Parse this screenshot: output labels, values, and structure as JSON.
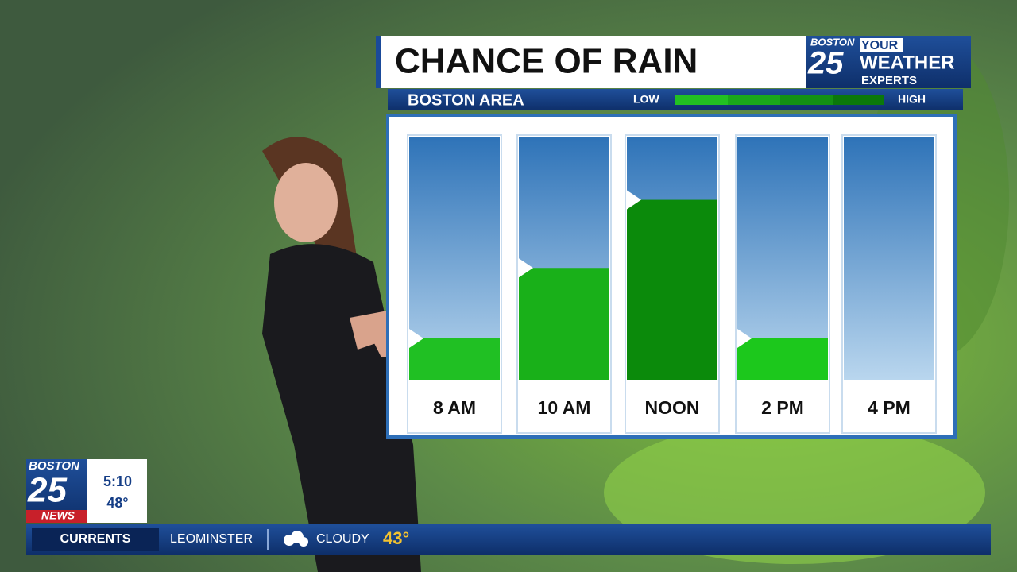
{
  "chart_data": {
    "type": "bar",
    "title": "CHANCE OF RAIN",
    "subtitle": "BOSTON AREA",
    "legend": {
      "low": "LOW",
      "high": "HIGH"
    },
    "categories": [
      "8 AM",
      "10 AM",
      "NOON",
      "2 PM",
      "4 PM"
    ],
    "values": [
      17,
      46,
      74,
      17,
      0
    ],
    "colors": [
      "#20c023",
      "#19b019",
      "#0b8a0b",
      "#1cc81c",
      "#1cc81c"
    ],
    "ylim": [
      0,
      100
    ]
  },
  "logo": {
    "city": "BOSTON",
    "number": "25",
    "line1": "YOUR",
    "line2": "WEATHER",
    "line3": "EXPERTS"
  },
  "bug": {
    "city": "BOSTON",
    "number": "25",
    "brand": "NEWS",
    "time": "5:10",
    "temperature": "48°"
  },
  "ticker": {
    "label": "CURRENTS",
    "location": "LEOMINSTER",
    "condition": "CLOUDY",
    "temperature": "43°"
  }
}
